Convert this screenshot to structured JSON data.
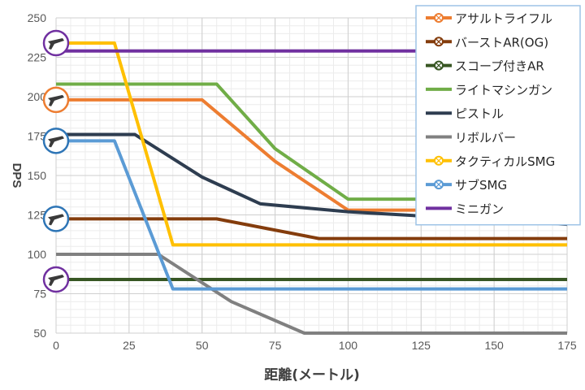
{
  "chart_data": {
    "type": "line",
    "title": "",
    "xlabel": "距離(メートル)",
    "ylabel": "DPS",
    "xlim": [
      0,
      175
    ],
    "ylim": [
      50,
      250
    ],
    "xticks": [
      0,
      25,
      50,
      75,
      100,
      125,
      150,
      175
    ],
    "yticks": [
      50,
      75,
      100,
      125,
      150,
      175,
      200,
      225,
      250
    ],
    "grid": true,
    "legend_position": "top-right",
    "series": [
      {
        "name": "アサルトライフル",
        "color": "#ED7D31",
        "marker": "hollow-circle-with-x",
        "x": [
          0,
          50,
          75,
          100,
          175
        ],
        "y": [
          198,
          198,
          159,
          128,
          128
        ]
      },
      {
        "name": "バーストAR(OG)",
        "color": "#843C0C",
        "marker": "hollow-circle-with-x",
        "x": [
          0,
          55,
          90,
          175
        ],
        "y": [
          122.5,
          122.5,
          110,
          110
        ]
      },
      {
        "name": "スコープ付きAR",
        "color": "#375623",
        "marker": "hollow-circle-with-x",
        "x": [
          0,
          175
        ],
        "y": [
          84,
          84
        ]
      },
      {
        "name": "ライトマシンガン",
        "color": "#70AD47",
        "marker": "none",
        "x": [
          0,
          55,
          75,
          100,
          175
        ],
        "y": [
          208,
          208,
          167,
          135,
          135
        ]
      },
      {
        "name": "ピストル",
        "color": "#2E3D50",
        "marker": "none",
        "x": [
          0,
          27,
          50,
          70,
          100,
          175
        ],
        "y": [
          176,
          176,
          149,
          132,
          127,
          119
        ]
      },
      {
        "name": "リボルバー",
        "color": "#808080",
        "marker": "none",
        "x": [
          0,
          35,
          60,
          85,
          175
        ],
        "y": [
          100,
          100,
          70,
          50,
          50
        ]
      },
      {
        "name": "タクティカルSMG",
        "color": "#FFC000",
        "marker": "hollow-circle-with-x",
        "x": [
          0,
          20,
          40,
          175
        ],
        "y": [
          234,
          234,
          106,
          106
        ]
      },
      {
        "name": "サブSMG",
        "color": "#5B9BD5",
        "marker": "hollow-circle-with-x",
        "x": [
          0,
          20,
          40,
          175
        ],
        "y": [
          172,
          172,
          78,
          78
        ]
      },
      {
        "name": "ミニガン",
        "color": "#7030A0",
        "marker": "none",
        "x": [
          0,
          175
        ],
        "y": [
          229,
          229
        ]
      }
    ],
    "badges": [
      {
        "y": 234,
        "ring_color": "#7030A0"
      },
      {
        "y": 198,
        "ring_color": "#ED7D31"
      },
      {
        "y": 172,
        "ring_color": "#2E75B6"
      },
      {
        "y": 122.5,
        "ring_color": "#2E75B6"
      },
      {
        "y": 84,
        "ring_color": "#7030A0"
      }
    ]
  }
}
